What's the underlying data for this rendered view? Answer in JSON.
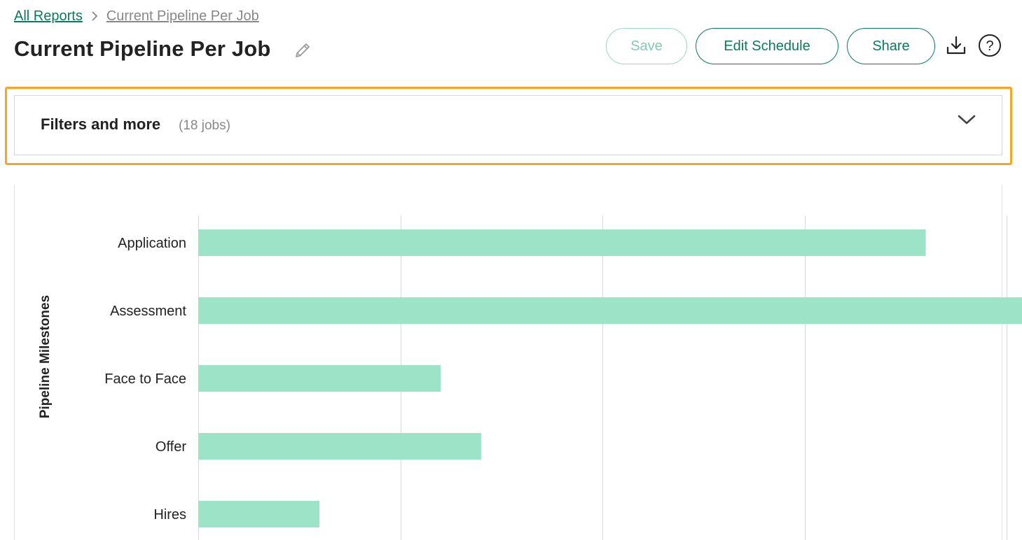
{
  "breadcrumb": {
    "root": "All Reports",
    "current": "Current Pipeline Per Job"
  },
  "page": {
    "title": "Current Pipeline Per Job"
  },
  "toolbar": {
    "save_label": "Save",
    "edit_schedule_label": "Edit Schedule",
    "share_label": "Share",
    "download_icon": "download-icon",
    "help_icon": "help-icon"
  },
  "filters": {
    "title": "Filters and more",
    "count": "(18 jobs)",
    "expand_icon": "chevron-down-icon"
  },
  "colors": {
    "accent": "#0b7a5c",
    "bar": "#9ce3c7",
    "highlight": "#f5a623",
    "gridline": "#d9d9d9"
  },
  "chart_data": {
    "type": "bar",
    "orientation": "horizontal",
    "ylabel": "Pipeline Milestones",
    "categories": [
      "Application",
      "Assessment",
      "Face to Face",
      "Offer",
      "Hires"
    ],
    "values": [
      18,
      20.4,
      6,
      7,
      3
    ],
    "xlim": [
      0,
      20
    ],
    "gridlines": [
      0,
      5,
      10,
      15,
      20
    ]
  }
}
